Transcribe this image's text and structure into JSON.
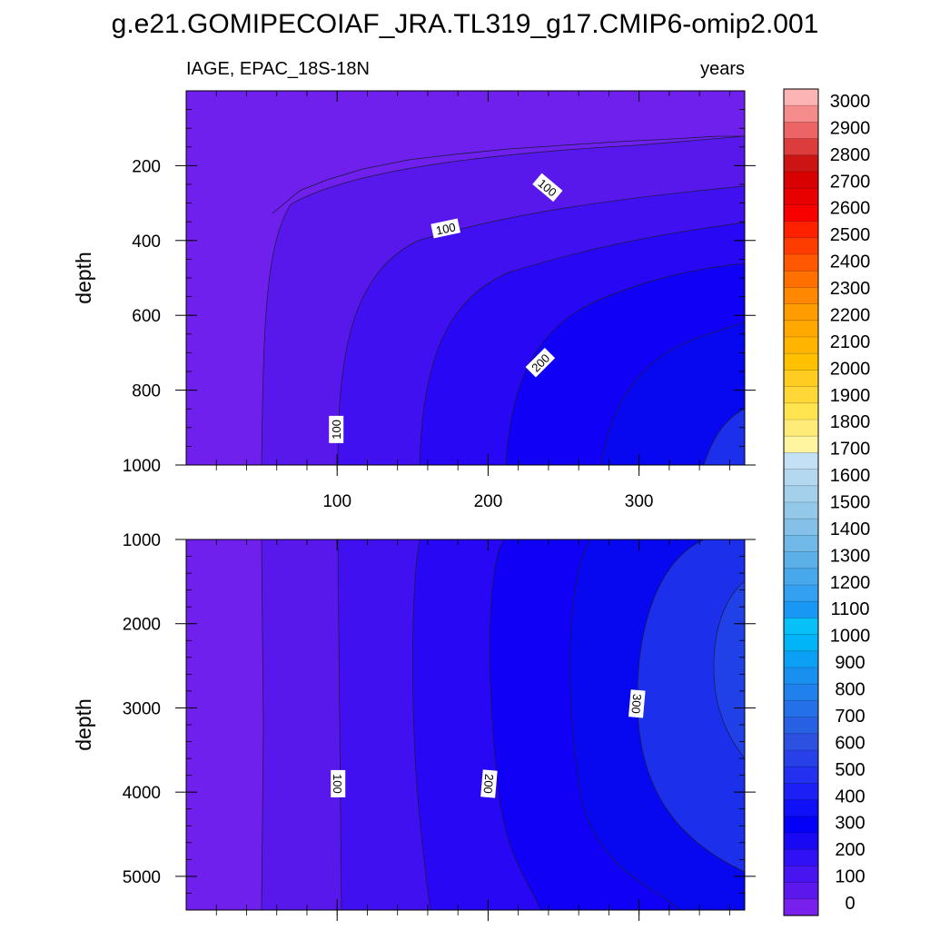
{
  "chart_data": {
    "type": "contour",
    "title": "g.e21.GOMIPECOIAF_JRA.TL319_g17.CMIP6-omip2.001",
    "left_subtitle": "IAGE, EPAC_18S-18N",
    "right_subtitle": "years",
    "x_tick_labels": [
      "100",
      "200",
      "300"
    ],
    "x_tick_values": [
      100,
      200,
      300
    ],
    "xlim": [
      0,
      370
    ],
    "panels": [
      {
        "name": "upper",
        "ylabel": "depth",
        "ylim": [
          0,
          1000
        ],
        "y_tick_labels": [
          "200",
          "400",
          "600",
          "800",
          "1000"
        ],
        "y_tick_values": [
          200,
          400,
          600,
          800,
          1000
        ],
        "contour_labels": [
          {
            "text": "100",
            "x": 239,
            "y": 260,
            "angle": 40
          },
          {
            "text": "100",
            "x": 172,
            "y": 370,
            "angle": -12
          },
          {
            "text": "200",
            "x": 235,
            "y": 728,
            "angle": -45
          },
          {
            "text": "100",
            "x": 100,
            "y": 905,
            "angle": -90
          }
        ]
      },
      {
        "name": "lower",
        "ylabel": "depth",
        "ylim": [
          1000,
          5400
        ],
        "y_tick_labels": [
          "1000",
          "2000",
          "3000",
          "4000",
          "5000"
        ],
        "y_tick_values": [
          1000,
          2000,
          3000,
          4000,
          5000
        ],
        "contour_labels": [
          {
            "text": "100",
            "x": 100,
            "y": 3900,
            "angle": 90
          },
          {
            "text": "200",
            "x": 200,
            "y": 3900,
            "angle": 95
          },
          {
            "text": "300",
            "x": 298,
            "y": 2950,
            "angle": 95
          }
        ]
      }
    ],
    "colorbar_labels": [
      "3000",
      "2900",
      "2800",
      "2700",
      "2600",
      "2500",
      "2400",
      "2300",
      "2200",
      "2100",
      "2000",
      "1900",
      "1800",
      "1700",
      "1600",
      "1500",
      "1400",
      "1300",
      "1200",
      "1100",
      "1000",
      "900",
      "800",
      "700",
      "600",
      "500",
      "400",
      "300",
      "200",
      "100",
      "0"
    ],
    "colorbar_colors_top_to_bottom": [
      "#fcb4b4",
      "#f48c8c",
      "#ec6464",
      "#dc3c3c",
      "#cc1414",
      "#d80000",
      "#e80000",
      "#f80000",
      "#ff2000",
      "#ff3c00",
      "#ff5800",
      "#ff7000",
      "#ff8800",
      "#ff9c00",
      "#ffa800",
      "#ffb400",
      "#ffc000",
      "#ffcc20",
      "#ffd838",
      "#ffe450",
      "#ffec78",
      "#fff4a0",
      "#c4e0f4",
      "#b4d8f0",
      "#a4d0ec",
      "#94c8e8",
      "#84c0e8",
      "#70b8e8",
      "#5cb0e8",
      "#48a8ec",
      "#34a0f0",
      "#1898f4",
      "#08c0f8",
      "#00b4f8",
      "#0ca0f4",
      "#1890f0",
      "#2080ec",
      "#2470e8",
      "#2860e4",
      "#2c50e0",
      "#2840e8",
      "#2430f0",
      "#1c20f4",
      "#1010f8",
      "#0400f8",
      "#1808f4",
      "#3010f4",
      "#4814f0",
      "#5c18ec",
      "#7820ec"
    ]
  }
}
